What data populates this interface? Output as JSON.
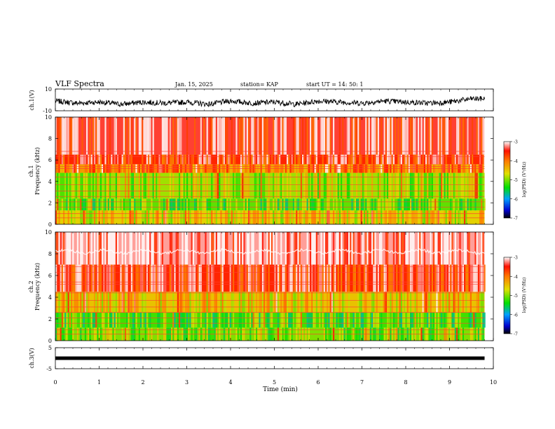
{
  "header": {
    "title": "VLF Spectra",
    "date": "Jan. 15, 2025",
    "station": "station= KAP",
    "start": "start  UT =   14: 50: 1"
  },
  "chart_data": [
    {
      "type": "line",
      "title": "",
      "xlabel": "",
      "ylabel": "ch.1(V)",
      "xlim": [
        0,
        10
      ],
      "ylim": [
        -10,
        10
      ],
      "yticks": [
        "10",
        "-10"
      ],
      "x_end": 9.8,
      "series": [
        {
          "x": [
            0,
            0.5,
            1,
            1.5,
            2,
            2.5,
            3,
            3.5,
            4,
            4.5,
            5,
            5.5,
            6,
            6.5,
            7,
            7.5,
            8,
            8.5,
            9,
            9.5,
            9.8
          ],
          "values": [
            -1,
            -3,
            -2,
            -4,
            -2,
            -3,
            -2,
            -4,
            -1,
            -3,
            -2,
            -4,
            -1,
            -2,
            -3,
            -1,
            -2,
            -3,
            -2,
            1,
            1
          ]
        }
      ]
    },
    {
      "type": "heatmap",
      "title": "",
      "xlabel": "",
      "ylabel": "ch.1\nFrequency (kHz)",
      "ylabel_lines": [
        "ch.1",
        "Frequency (kHz)"
      ],
      "xlim": [
        0,
        10
      ],
      "ylim": [
        0,
        10
      ],
      "yticks": [
        "0",
        "2",
        "4",
        "6",
        "8",
        "10"
      ],
      "x_end": 9.8,
      "colorbar": {
        "label": "log(PSD) (V²/Hz)",
        "ticks": [
          "-3",
          "-4",
          "-5",
          "-6",
          "-7"
        ],
        "range": [
          -7,
          -3
        ]
      },
      "bands": [
        {
          "from": 0,
          "to": 1.3,
          "level": -4.6
        },
        {
          "from": 1.3,
          "to": 2.4,
          "level": -5.1
        },
        {
          "from": 2.4,
          "to": 4.8,
          "level": -4.9
        },
        {
          "from": 4.8,
          "to": 5.6,
          "level": -4.0
        },
        {
          "from": 5.6,
          "to": 6.5,
          "level": -3.6
        },
        {
          "from": 6.5,
          "to": 10,
          "level": -3.4
        }
      ]
    },
    {
      "type": "heatmap",
      "title": "",
      "xlabel": "",
      "ylabel": "ch.2\nFrequency (kHz)",
      "ylabel_lines": [
        "ch.2",
        "Frequency (kHz)"
      ],
      "xlim": [
        0,
        10
      ],
      "ylim": [
        0,
        10
      ],
      "yticks": [
        "0",
        "2",
        "4",
        "6",
        "8",
        "10"
      ],
      "x_end": 9.8,
      "colorbar": {
        "label": "log(PSD) (V²/Hz)",
        "ticks": [
          "-3",
          "-4",
          "-5",
          "-6",
          "-7"
        ],
        "range": [
          -7,
          -3
        ]
      },
      "bands": [
        {
          "from": 0,
          "to": 1.2,
          "level": -5.0
        },
        {
          "from": 1.2,
          "to": 2.6,
          "level": -5.2
        },
        {
          "from": 2.6,
          "to": 4.5,
          "level": -4.5
        },
        {
          "from": 4.5,
          "to": 7.0,
          "level": -3.6
        },
        {
          "from": 7.0,
          "to": 10,
          "level": -3.2
        }
      ]
    },
    {
      "type": "line",
      "title": "",
      "xlabel": "Time (min)",
      "ylabel": "ch.3(V)",
      "xlim": [
        0,
        10
      ],
      "ylim": [
        -5,
        5
      ],
      "yticks": [
        "5",
        "-5"
      ],
      "xticks": [
        "0",
        "1",
        "2",
        "3",
        "4",
        "5",
        "6",
        "7",
        "8",
        "9",
        "10"
      ],
      "x_end": 9.8,
      "series": [
        {
          "x": [
            0,
            9.8
          ],
          "values": [
            0,
            0
          ]
        }
      ]
    }
  ]
}
